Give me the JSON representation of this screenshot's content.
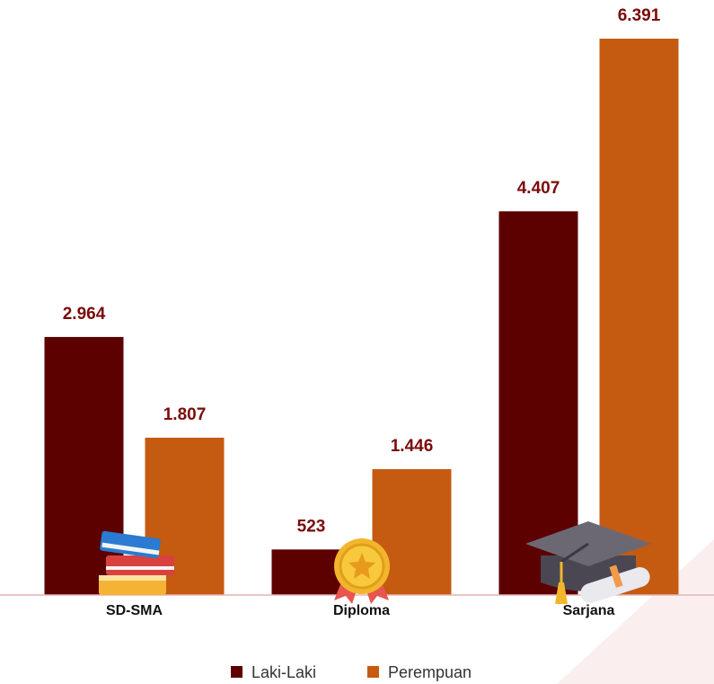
{
  "chart_data": {
    "type": "bar",
    "categories": [
      "SD-SMA",
      "Diploma",
      "Sarjana"
    ],
    "series": [
      {
        "name": "Laki-Laki",
        "color": "#5c0000",
        "values": [
          2964,
          523,
          4407
        ],
        "value_labels": [
          "2.964",
          "523",
          "4.407"
        ]
      },
      {
        "name": "Perempuan",
        "color": "#c55a11",
        "values": [
          1807,
          1446,
          6391
        ],
        "value_labels": [
          "1.807",
          "1.446",
          "6.391"
        ]
      }
    ],
    "legend": "bottom"
  }
}
